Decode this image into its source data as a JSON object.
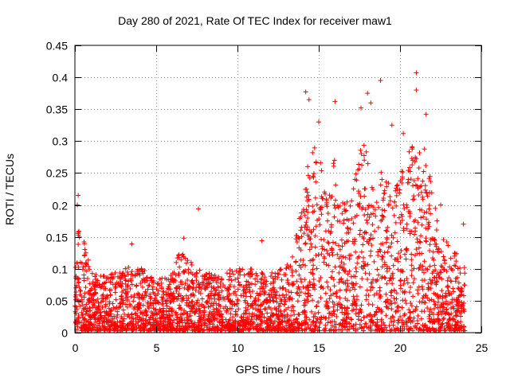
{
  "chart_data": {
    "type": "scatter",
    "title": "Day 280 of 2021, Rate Of TEC Index for receiver maw1",
    "xlabel": "GPS time / hours",
    "ylabel": "ROTI / TECUs",
    "xlim": [
      0,
      25
    ],
    "ylim": [
      0,
      0.45
    ],
    "xticks": [
      "0",
      "5",
      "10",
      "15",
      "20",
      "25"
    ],
    "yticks": [
      "0",
      "0.05",
      "0.1",
      "0.15",
      "0.2",
      "0.25",
      "0.3",
      "0.35",
      "0.4",
      "0.45"
    ],
    "grid": true,
    "marker": "+",
    "color": "#ff0000",
    "envelope": {
      "x": [
        0.0,
        0.2,
        0.5,
        1.0,
        2.0,
        3.0,
        4.0,
        5.0,
        6.0,
        6.5,
        7.0,
        8.0,
        9.0,
        10.0,
        11.0,
        12.0,
        13.0,
        13.5,
        14.0,
        14.5,
        15.0,
        15.5,
        16.0,
        16.5,
        17.0,
        17.5,
        18.0,
        18.5,
        19.0,
        19.5,
        20.0,
        20.5,
        21.0,
        21.5,
        22.0,
        22.5,
        23.0,
        23.5,
        24.0
      ],
      "y": [
        0.09,
        0.17,
        0.15,
        0.09,
        0.09,
        0.1,
        0.1,
        0.08,
        0.09,
        0.13,
        0.11,
        0.09,
        0.09,
        0.1,
        0.1,
        0.09,
        0.1,
        0.13,
        0.22,
        0.28,
        0.3,
        0.22,
        0.28,
        0.2,
        0.22,
        0.28,
        0.3,
        0.2,
        0.28,
        0.2,
        0.25,
        0.28,
        0.3,
        0.3,
        0.22,
        0.15,
        0.14,
        0.12,
        0.1
      ]
    },
    "points": [
      {
        "x": 0.2,
        "y": 0.215
      },
      {
        "x": 0.15,
        "y": 0.2
      },
      {
        "x": 7.6,
        "y": 0.194
      },
      {
        "x": 14.2,
        "y": 0.377
      },
      {
        "x": 14.4,
        "y": 0.365
      },
      {
        "x": 15.0,
        "y": 0.33
      },
      {
        "x": 16.0,
        "y": 0.362
      },
      {
        "x": 17.6,
        "y": 0.352
      },
      {
        "x": 18.0,
        "y": 0.375
      },
      {
        "x": 18.2,
        "y": 0.36
      },
      {
        "x": 18.8,
        "y": 0.395
      },
      {
        "x": 21.0,
        "y": 0.407
      },
      {
        "x": 21.0,
        "y": 0.38
      },
      {
        "x": 20.2,
        "y": 0.312
      },
      {
        "x": 21.6,
        "y": 0.342
      },
      {
        "x": 19.5,
        "y": 0.325
      },
      {
        "x": 20.4,
        "y": 0.2
      },
      {
        "x": 3.5,
        "y": 0.139
      },
      {
        "x": 6.7,
        "y": 0.148
      },
      {
        "x": 11.5,
        "y": 0.144
      },
      {
        "x": 22.5,
        "y": 0.2
      },
      {
        "x": 23.9,
        "y": 0.17
      }
    ]
  }
}
